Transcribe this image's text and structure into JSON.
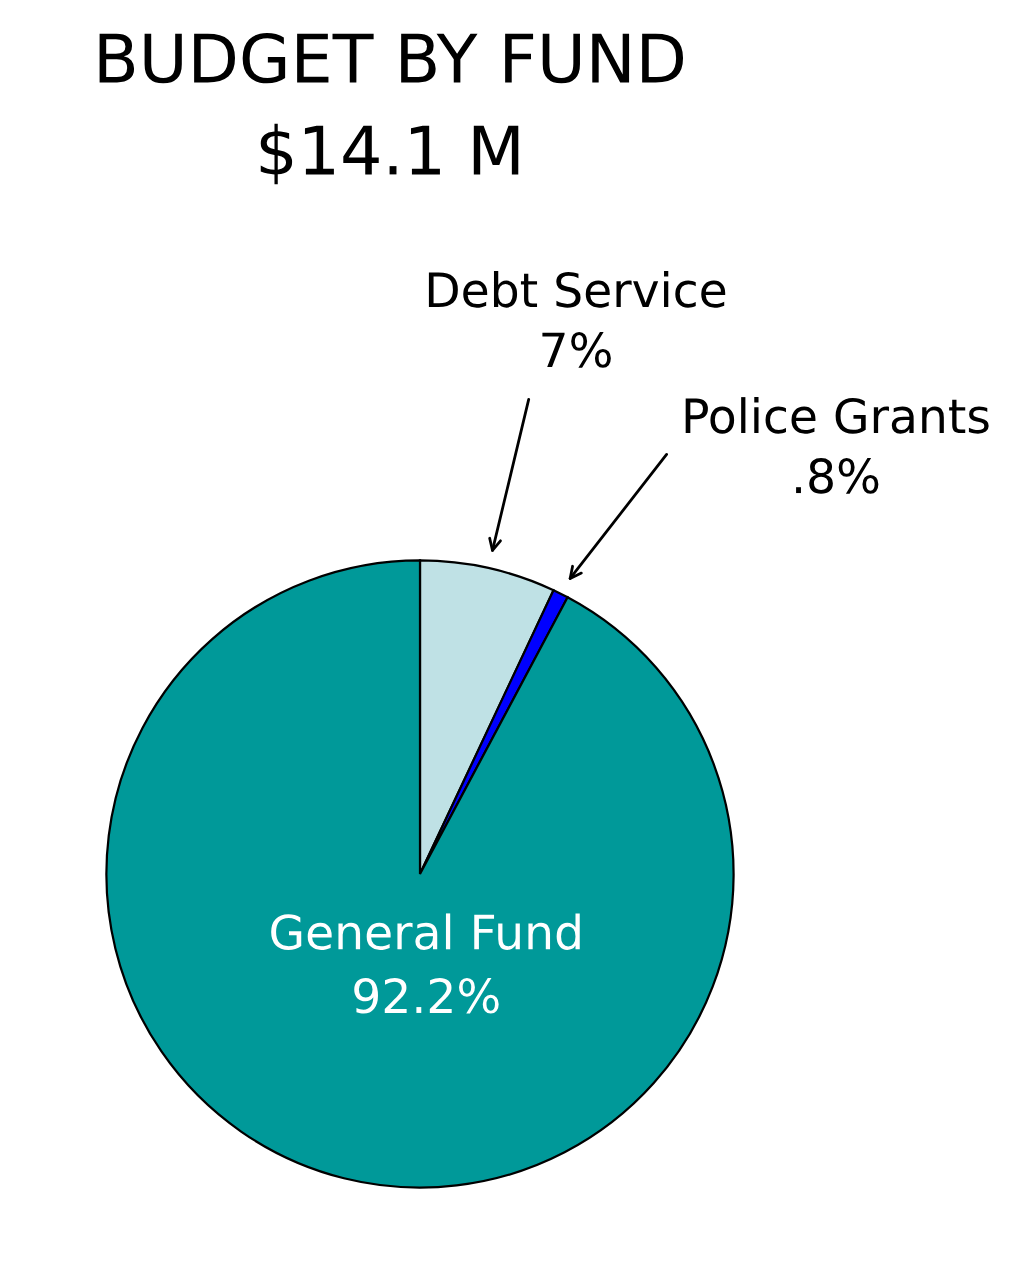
{
  "chart_data": {
    "type": "pie",
    "title": "BUDGET BY FUND",
    "subtitle": "$14.1 M",
    "categories": [
      "Debt Service",
      "Police Grants",
      "General Fund"
    ],
    "values": [
      7,
      0.8,
      92.2
    ],
    "value_labels": [
      "7%",
      ".8%",
      "92.2%"
    ],
    "colors": [
      "#bfe1e5",
      "#0000ff",
      "#009999"
    ]
  }
}
